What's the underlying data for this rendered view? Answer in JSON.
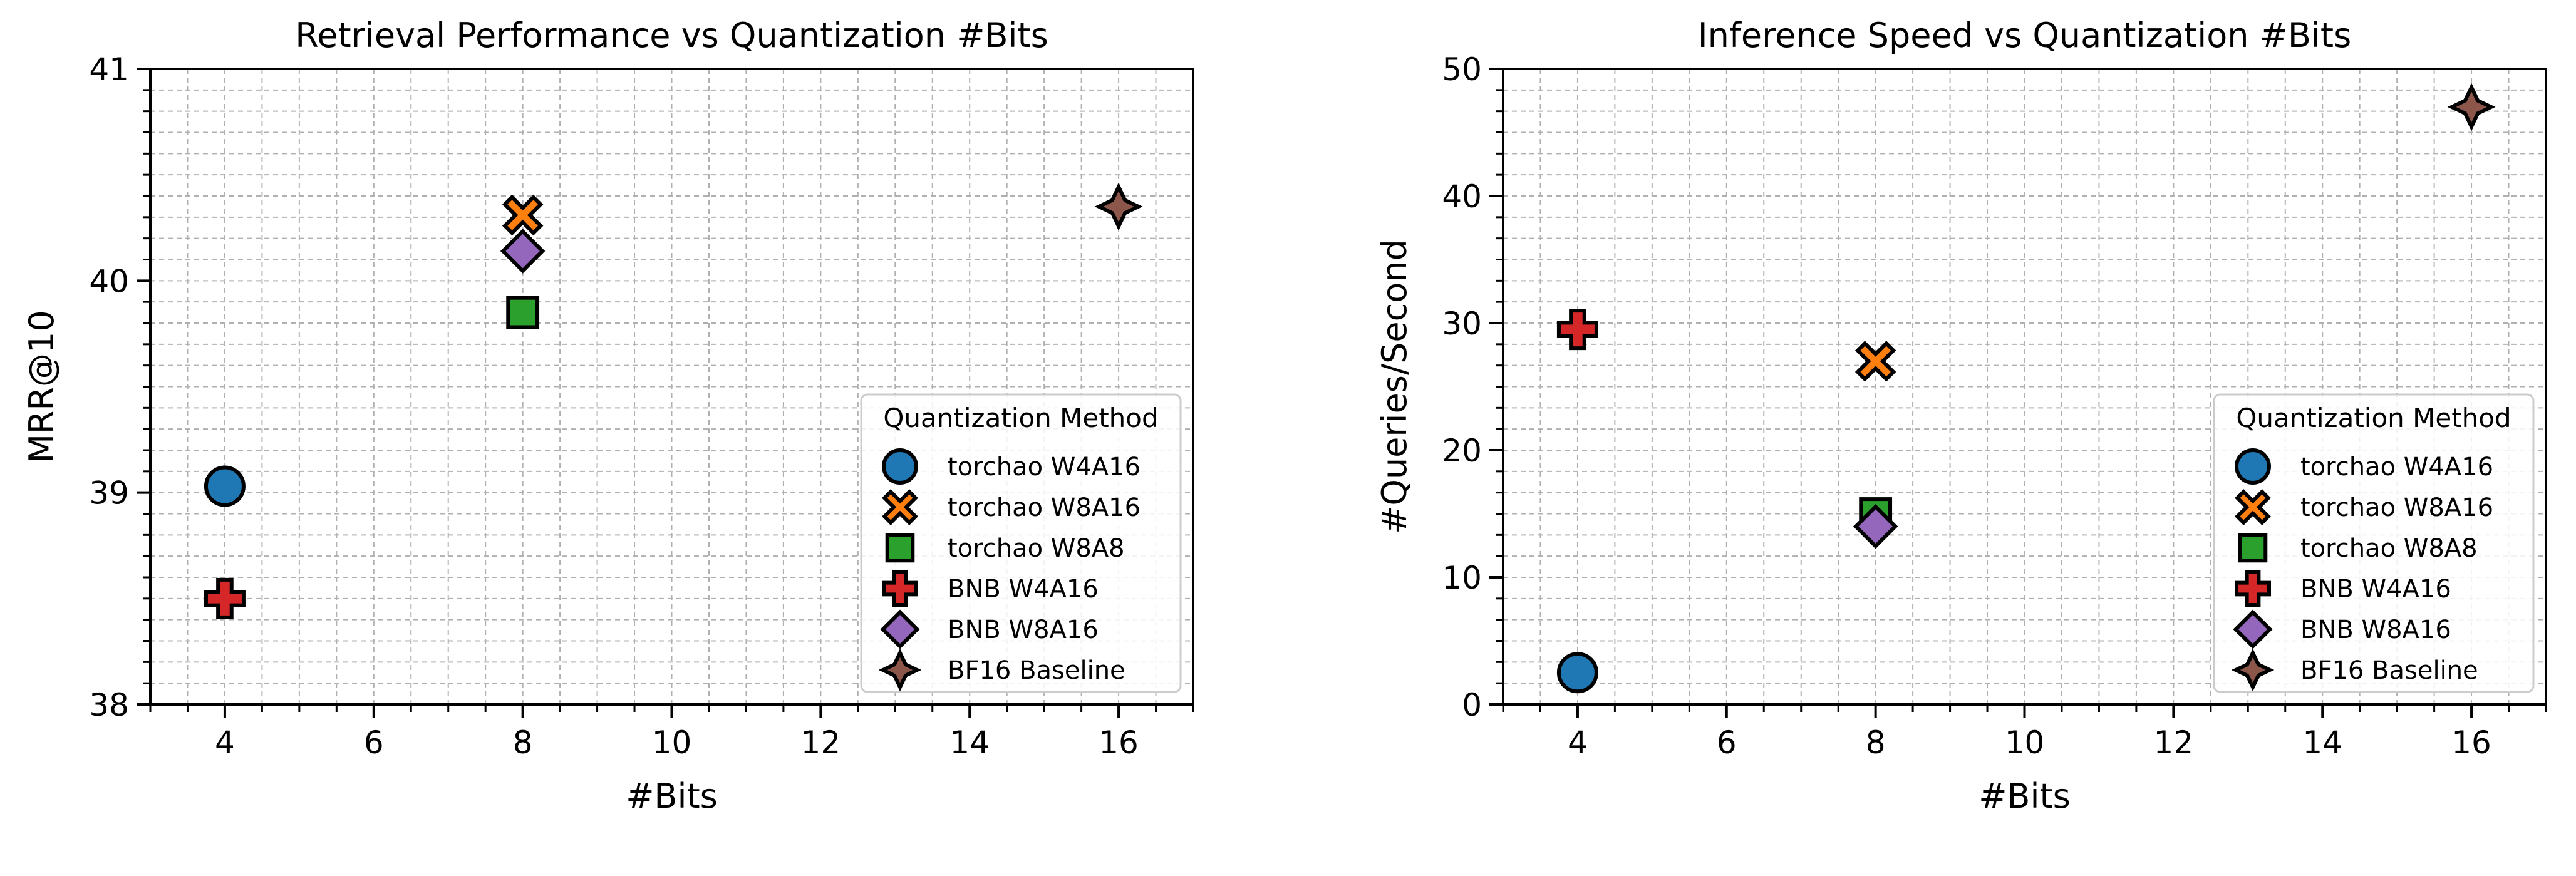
{
  "chart_data": [
    {
      "type": "scatter",
      "title": "Retrieval Performance vs Quantization #Bits",
      "xlabel": "#Bits",
      "ylabel": "MRR@10",
      "xlim": [
        3,
        17
      ],
      "ylim": [
        38,
        41
      ],
      "xticks": [
        4,
        6,
        8,
        10,
        12,
        14,
        16
      ],
      "yticks": [
        38,
        39,
        40,
        41
      ],
      "grid": true,
      "legend_title": "Quantization Method",
      "legend_position": "lower-right",
      "series": [
        {
          "name": "torchao W4A16",
          "x": [
            4
          ],
          "y": [
            39.03
          ]
        },
        {
          "name": "torchao W8A16",
          "x": [
            8
          ],
          "y": [
            40.31
          ]
        },
        {
          "name": "torchao W8A8",
          "x": [
            8
          ],
          "y": [
            39.85
          ]
        },
        {
          "name": "BNB W4A16",
          "x": [
            4
          ],
          "y": [
            38.5
          ]
        },
        {
          "name": "BNB W8A16",
          "x": [
            8
          ],
          "y": [
            40.14
          ]
        },
        {
          "name": "BF16 Baseline",
          "x": [
            16
          ],
          "y": [
            40.35
          ]
        }
      ]
    },
    {
      "type": "scatter",
      "title": "Inference Speed vs Quantization #Bits",
      "xlabel": "#Bits",
      "ylabel": "#Queries/Second",
      "xlim": [
        3,
        17
      ],
      "ylim": [
        0,
        50
      ],
      "xticks": [
        4,
        6,
        8,
        10,
        12,
        14,
        16
      ],
      "yticks": [
        0,
        10,
        20,
        30,
        40,
        50
      ],
      "grid": true,
      "legend_title": "Quantization Method",
      "legend_position": "lower-right",
      "series": [
        {
          "name": "torchao W4A16",
          "x": [
            4
          ],
          "y": [
            2.5
          ]
        },
        {
          "name": "torchao W8A16",
          "x": [
            8
          ],
          "y": [
            27
          ]
        },
        {
          "name": "torchao W8A8",
          "x": [
            8
          ],
          "y": [
            15
          ]
        },
        {
          "name": "BNB W4A16",
          "x": [
            4
          ],
          "y": [
            29.5
          ]
        },
        {
          "name": "BNB W8A16",
          "x": [
            8
          ],
          "y": [
            14
          ]
        },
        {
          "name": "BF16 Baseline",
          "x": [
            16
          ],
          "y": [
            47
          ]
        }
      ]
    }
  ],
  "styles": {
    "series": [
      {
        "marker": "circle",
        "color": "#1f77b4"
      },
      {
        "marker": "x",
        "color": "#ff7f0e"
      },
      {
        "marker": "square",
        "color": "#2ca02c"
      },
      {
        "marker": "plus",
        "color": "#d62728"
      },
      {
        "marker": "diamond",
        "color": "#9467bd"
      },
      {
        "marker": "star4",
        "color": "#8c564b"
      }
    ],
    "edge_color": "#000000",
    "grid_color": "#b0b0b0"
  }
}
